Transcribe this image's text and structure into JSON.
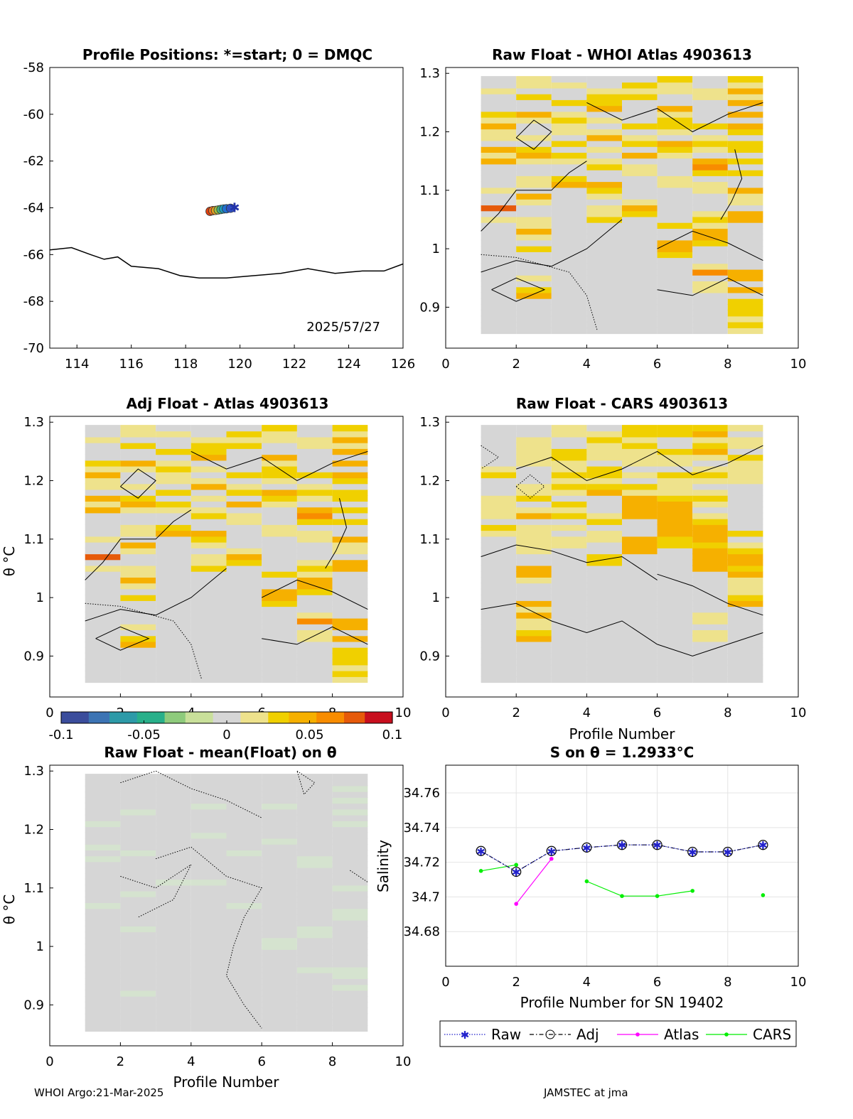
{
  "footer": {
    "left": "WHOI Argo:21-Mar-2025",
    "right": "JAMSTEC at jma"
  },
  "colors": {
    "cmap": [
      "#3b4d9c",
      "#3c74b4",
      "#2d9aa8",
      "#28b08a",
      "#8ecb7c",
      "#c9e09a",
      "#d6d6d6",
      "#eee28c",
      "#f0d000",
      "#f6b000",
      "#f88c00",
      "#e65a0a",
      "#c80f1e"
    ],
    "raw": "#2222cc",
    "adj": "#000000",
    "atlas": "#ff00ff",
    "cars": "#00ee00",
    "land": "#000000"
  },
  "colorbar": {
    "ticks": [
      "-0.1",
      "-0.05",
      "0",
      "0.05",
      "0.1"
    ],
    "range": [
      -0.1,
      0.1
    ]
  },
  "shared": {
    "profile_ticks": [
      "0",
      "2",
      "4",
      "6",
      "8",
      "10"
    ],
    "theta_ticks": [
      "0.9",
      "1",
      "1.1",
      "1.2",
      "1.3"
    ],
    "theta_label": "θ °C",
    "profile_label": "Profile Number"
  },
  "chart_data": [
    {
      "type": "scatter",
      "id": "positions",
      "title": "Profile Positions: *=start; 0 = DMQC",
      "xlim": [
        113,
        126
      ],
      "ylim": [
        -70,
        -58
      ],
      "x_ticks": [
        "114",
        "116",
        "118",
        "120",
        "122",
        "124",
        "126"
      ],
      "y_ticks": [
        "-58",
        "-60",
        "-62",
        "-64",
        "-66",
        "-68",
        "-70"
      ],
      "annotation": "2025/57/27",
      "points": [
        {
          "lon": 119.8,
          "lat": -64.0
        },
        {
          "lon": 119.65,
          "lat": -64.02
        },
        {
          "lon": 119.5,
          "lat": -64.04
        },
        {
          "lon": 119.4,
          "lat": -64.05
        },
        {
          "lon": 119.3,
          "lat": -64.07
        },
        {
          "lon": 119.2,
          "lat": -64.09
        },
        {
          "lon": 119.1,
          "lat": -64.11
        },
        {
          "lon": 119.0,
          "lat": -64.12
        },
        {
          "lon": 118.9,
          "lat": -64.15
        }
      ],
      "coastline": [
        [
          113,
          -65.8
        ],
        [
          113.8,
          -65.7
        ],
        [
          114.5,
          -66.0
        ],
        [
          115.0,
          -66.2
        ],
        [
          115.5,
          -66.1
        ],
        [
          116.0,
          -66.5
        ],
        [
          117.0,
          -66.6
        ],
        [
          117.8,
          -66.9
        ],
        [
          118.5,
          -67.0
        ],
        [
          119.5,
          -67.0
        ],
        [
          120.5,
          -66.9
        ],
        [
          121.5,
          -66.8
        ],
        [
          122.5,
          -66.6
        ],
        [
          123.5,
          -66.8
        ],
        [
          124.5,
          -66.7
        ],
        [
          125.3,
          -66.7
        ],
        [
          126,
          -66.4
        ]
      ]
    },
    {
      "type": "heatmap",
      "id": "raw_atlas",
      "title": "Raw Float - WHOI Atlas  4903613",
      "xlim": [
        0,
        10
      ],
      "ylim": [
        0.83,
        1.31
      ],
      "levels": [
        0.86,
        0.87,
        0.88,
        0.89,
        0.9,
        0.91,
        0.92,
        0.93,
        0.94,
        0.95,
        0.96,
        0.97,
        0.98,
        0.99,
        1.0,
        1.01,
        1.02,
        1.03,
        1.04,
        1.05,
        1.06,
        1.07,
        1.08,
        1.09,
        1.1,
        1.11,
        1.12,
        1.13,
        1.14,
        1.15,
        1.16,
        1.17,
        1.18,
        1.19,
        1.2,
        1.21,
        1.22,
        1.23,
        1.24,
        1.25,
        1.26,
        1.27,
        1.28,
        1.29
      ],
      "columns": [
        [
          0,
          0,
          0,
          0,
          0,
          0,
          0,
          0,
          0,
          0,
          0,
          0,
          0,
          0,
          0,
          0,
          0,
          0,
          0,
          0.02,
          0,
          0.08,
          0,
          0,
          0.01,
          0,
          0,
          0,
          0,
          0.04,
          0.02,
          0.04,
          0,
          0.01,
          0.02,
          0.04,
          0.02,
          0.03,
          0,
          0,
          0,
          0.01,
          0,
          0
        ],
        [
          0,
          0,
          0,
          0,
          0,
          0,
          0.05,
          0.03,
          0,
          0.01,
          0,
          0,
          0,
          0,
          0.03,
          0,
          0.01,
          0.05,
          0.02,
          0.01,
          0,
          0,
          0.01,
          0.04,
          0,
          0.02,
          0.02,
          0,
          0,
          0.02,
          0.04,
          0.03,
          0,
          0.01,
          0,
          0,
          0.02,
          0.04,
          0,
          0,
          0.03,
          0,
          0.02,
          0.01
        ],
        [
          0,
          0,
          0,
          0,
          0,
          0,
          0,
          0,
          0,
          0,
          0,
          0,
          0,
          0,
          0,
          0,
          0,
          0,
          0,
          0,
          0,
          0,
          0,
          0,
          0,
          0.04,
          0.03,
          0,
          0,
          0.02,
          0.03,
          0,
          0.03,
          0,
          0.01,
          0.02,
          0.03,
          0.02,
          0,
          0.03,
          0,
          0,
          0.02,
          0
        ],
        [
          0,
          0,
          0,
          0,
          0,
          0,
          0,
          0,
          0,
          0,
          0,
          0,
          0,
          0,
          0,
          0,
          0,
          0,
          0,
          0.03,
          0.02,
          0.02,
          0,
          0.01,
          0.03,
          0.04,
          0,
          0,
          0.03,
          0.02,
          0,
          0.02,
          0,
          0.04,
          0.02,
          0,
          0.02,
          0,
          0.04,
          0.03,
          0.03,
          0.02,
          0,
          0
        ],
        [
          0,
          0,
          0,
          0,
          0,
          0,
          0,
          0,
          0,
          0,
          0,
          0,
          0,
          0,
          0,
          0,
          0,
          0,
          0,
          0,
          0.03,
          0.04,
          0.02,
          0,
          0,
          0,
          0,
          0.01,
          0.02,
          0,
          0.04,
          0,
          0.03,
          0.02,
          0,
          0.03,
          0,
          0,
          0,
          0,
          0.03,
          0.02,
          0.03,
          0
        ],
        [
          0,
          0,
          0,
          0,
          0,
          0,
          0,
          0,
          0,
          0,
          0,
          0,
          0,
          0.03,
          0.04,
          0.04,
          0,
          0,
          0.03,
          0,
          0,
          0,
          0,
          0,
          0,
          0.02,
          0.01,
          0,
          0,
          0,
          0.02,
          0.03,
          0.04,
          0,
          0.02,
          0.03,
          0.03,
          0.01,
          0.04,
          0,
          0,
          0.02,
          0.02,
          0.03
        ],
        [
          0,
          0,
          0,
          0,
          0,
          0,
          0,
          0.01,
          0.01,
          0,
          0.06,
          0.02,
          0,
          0,
          0,
          0.03,
          0.05,
          0.04,
          0.02,
          0.03,
          0.01,
          0,
          0,
          0,
          0.02,
          0.01,
          0,
          0.03,
          0.06,
          0.04,
          0,
          0.01,
          0.03,
          0.02,
          0,
          0.03,
          0,
          0,
          0,
          0,
          0.02,
          0.02,
          0,
          0
        ],
        [
          0.01,
          0.03,
          0.02,
          0.03,
          0.03,
          0.03,
          0,
          0.05,
          0,
          0.04,
          0.04,
          0,
          0,
          0,
          0,
          0,
          0,
          0,
          0,
          0.05,
          0.04,
          0,
          0.02,
          0.02,
          0.04,
          0,
          0,
          0.03,
          0,
          0.03,
          0,
          0.03,
          0.03,
          0,
          0.03,
          0.04,
          0,
          0.04,
          0,
          0.04,
          0.02,
          0.04,
          0.02,
          0.03
        ],
        [
          0,
          0.02,
          0.04,
          0,
          0,
          0,
          0,
          0,
          0,
          0,
          0,
          0,
          0.02,
          0.07,
          0.04,
          0,
          0,
          0,
          0,
          0,
          0.06,
          0.02,
          0.04,
          0.01,
          0,
          0.04,
          0.03,
          0.04,
          0.02,
          0,
          0.03,
          0.01,
          0.03,
          0,
          0,
          0.03,
          0.04,
          0.01,
          0.04,
          0.03,
          0.02,
          0.04,
          0.02,
          0.03
        ]
      ]
    },
    {
      "type": "heatmap",
      "id": "adj_atlas",
      "title": "Adj Float - Atlas  4903613",
      "xlim": [
        0,
        10
      ],
      "ylim": [
        0.83,
        1.31
      ],
      "same_as": "raw_atlas"
    },
    {
      "type": "heatmap",
      "id": "raw_cars",
      "title": "Raw Float - CARS  4903613",
      "xlim": [
        0,
        10
      ],
      "ylim": [
        0.83,
        1.31
      ],
      "columns": [
        [
          0,
          0,
          0,
          0,
          0,
          0,
          0,
          0,
          0,
          0,
          0,
          0,
          0,
          0,
          0,
          0,
          0,
          0,
          0,
          0,
          0,
          0,
          0,
          0,
          0,
          0.01,
          0.03,
          0,
          0.02,
          0.01,
          0.02,
          0.02,
          0,
          0,
          0,
          0.03,
          0.01,
          0,
          0,
          0,
          0,
          0,
          0,
          0
        ],
        [
          0,
          0,
          0,
          0,
          0,
          0,
          0,
          0.04,
          0.03,
          0.02,
          0.01,
          0.04,
          0.02,
          0.04,
          0,
          0,
          0,
          0.02,
          0.04,
          0.04,
          0,
          0,
          0.01,
          0.02,
          0.02,
          0.02,
          0.02,
          0,
          0.04,
          0.02,
          0,
          0.03,
          0.02,
          0.01,
          0,
          0,
          0,
          0.01,
          0.02,
          0.01,
          0.01,
          0.01,
          0,
          0
        ],
        [
          0,
          0,
          0,
          0,
          0,
          0,
          0,
          0,
          0,
          0,
          0,
          0,
          0,
          0,
          0,
          0,
          0,
          0,
          0,
          0,
          0,
          0,
          0,
          0.02,
          0.02,
          0,
          0.01,
          0,
          0.03,
          0.02,
          0.03,
          0,
          0.02,
          0.03,
          0.01,
          0.03,
          0.01,
          0.02,
          0.03,
          0.03,
          0,
          0,
          0.01,
          0.02
        ],
        [
          0,
          0,
          0,
          0,
          0,
          0,
          0,
          0,
          0,
          0,
          0,
          0,
          0,
          0,
          0,
          0,
          0,
          0,
          0,
          0,
          0.03,
          0.03,
          0,
          0,
          0.01,
          0.02,
          0,
          0.03,
          0.02,
          0,
          0,
          0,
          0.04,
          0.03,
          0.02,
          0.03,
          0.03,
          0,
          0.02,
          0.01,
          0.02,
          0.03,
          0.02,
          0
        ],
        [
          0,
          0,
          0,
          0,
          0,
          0,
          0,
          0,
          0,
          0,
          0,
          0,
          0,
          0,
          0,
          0,
          0,
          0,
          0,
          0,
          0,
          0,
          0.04,
          0.04,
          0.04,
          0,
          0,
          0,
          0.04,
          0.04,
          0.04,
          0.04,
          0.02,
          0.03,
          0,
          0.01,
          0,
          0.02,
          0.01,
          0.02,
          0.03,
          0.02,
          0.03,
          0.03
        ],
        [
          0,
          0,
          0,
          0,
          0,
          0,
          0,
          0,
          0,
          0,
          0,
          0,
          0,
          0,
          0,
          0,
          0,
          0,
          0,
          0,
          0,
          0,
          0,
          0.03,
          0.03,
          0.04,
          0.04,
          0.04,
          0.04,
          0.04,
          0.04,
          0.03,
          0.02,
          0.02,
          0.01,
          0.03,
          0,
          0.01,
          0.02,
          0.03,
          0,
          0,
          0.03,
          0.03
        ],
        [
          0,
          0,
          0,
          0,
          0,
          0,
          0,
          0.02,
          0.02,
          0,
          0.01,
          0.02,
          0,
          0,
          0,
          0,
          0,
          0,
          0,
          0.04,
          0.05,
          0.05,
          0.04,
          0.03,
          0.04,
          0.04,
          0.04,
          0.03,
          0.02,
          0,
          0.02,
          0.03,
          0.02,
          0,
          0.02,
          0.03,
          0.01,
          0,
          0.02,
          0.04,
          0.03,
          0.02,
          0.04,
          0.03
        ],
        [
          0,
          0,
          0,
          0,
          0,
          0,
          0,
          0,
          0,
          0,
          0,
          0,
          0,
          0.04,
          0.03,
          0.02,
          0.01,
          0.01,
          0.04,
          0.03,
          0.05,
          0.05,
          0.03,
          0.02,
          0,
          0.03,
          0,
          0,
          0,
          0,
          0,
          0,
          0,
          0,
          0.01,
          0.02,
          0.02,
          0.02,
          0.03,
          0,
          0.01,
          0.01,
          0,
          0.01
        ],
        [
          0,
          0,
          0,
          0,
          0,
          0,
          0,
          0,
          0,
          0,
          0,
          0,
          0,
          0,
          0,
          0,
          0,
          0,
          0,
          0,
          0,
          0.03,
          0.02,
          0.04,
          0.03,
          0.01,
          0.01,
          0.02,
          0.03,
          0.03,
          0.02,
          0.01,
          0.02,
          0.01,
          0.02,
          0.03,
          0.03,
          0.02,
          0.01,
          0.02,
          0.03,
          0.02,
          0.02,
          0.01
        ]
      ]
    },
    {
      "type": "heatmap",
      "id": "raw_mean",
      "title": "Raw Float - mean(Float) on θ",
      "xlim": [
        0,
        10
      ],
      "ylim": [
        0.83,
        1.31
      ],
      "ylabel": "θ °C",
      "xlabel": "Profile Number"
    },
    {
      "type": "line",
      "id": "salinity",
      "title": "S on θ = 1.2933°C",
      "xlabel": "Profile Number for SN 19402",
      "ylabel": "Salinity",
      "xlim": [
        0,
        10
      ],
      "ylim": [
        34.66,
        34.776
      ],
      "x_ticks": [
        "0",
        "2",
        "4",
        "6",
        "8",
        "10"
      ],
      "y_ticks": [
        "34.68",
        "34.7",
        "34.72",
        "34.74",
        "34.76"
      ],
      "x": [
        1,
        2,
        3,
        4,
        5,
        6,
        7,
        8,
        9
      ],
      "series": [
        {
          "name": "Raw",
          "values": [
            34.7265,
            34.7145,
            34.7265,
            34.7285,
            34.73,
            34.73,
            34.726,
            34.726,
            34.73
          ]
        },
        {
          "name": "Adj",
          "values": [
            34.7265,
            34.7145,
            34.7265,
            34.7285,
            34.73,
            34.73,
            34.726,
            34.726,
            34.73
          ]
        },
        {
          "name": "Atlas",
          "values": [
            null,
            34.696,
            34.722,
            null,
            null,
            null,
            null,
            null,
            null
          ]
        },
        {
          "name": "CARS",
          "values": [
            34.715,
            34.7185,
            null,
            34.709,
            34.7005,
            34.7005,
            34.7035,
            null,
            34.701
          ]
        }
      ],
      "legend": [
        "Raw",
        "Adj",
        "Atlas",
        "CARS"
      ],
      "legend_position": "bottom"
    }
  ]
}
